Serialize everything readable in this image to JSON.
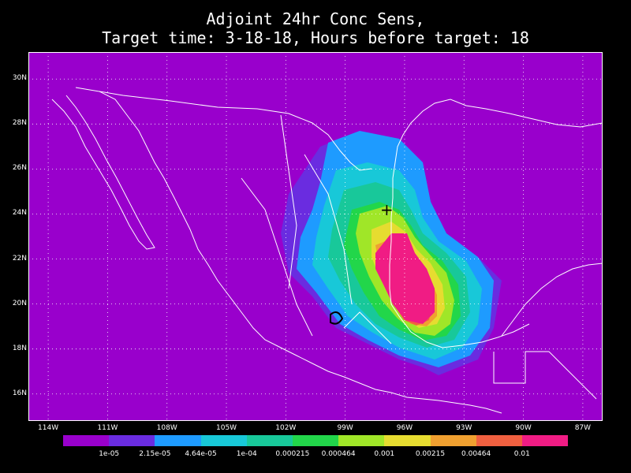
{
  "title_line1": "Adjoint 24hr Conc Sens,",
  "title_line2": "Target time: 3-18-18, Hours before target: 18",
  "map": {
    "lon_range": [
      -115,
      -86
    ],
    "lat_range": [
      14.8,
      31.2
    ],
    "background_color": "#9900cc",
    "target_marker": {
      "lon": -96.9,
      "lat": 24.2,
      "symbol": "+"
    }
  },
  "lat_labels": [
    "30N",
    "28N",
    "26N",
    "24N",
    "22N",
    "20N",
    "18N",
    "16N"
  ],
  "lon_labels": [
    "114W",
    "111W",
    "108W",
    "105W",
    "102W",
    "99W",
    "96W",
    "93W",
    "90W",
    "87W"
  ],
  "colorbar": {
    "colors": [
      "#9900cc",
      "#6a2ce0",
      "#1e9bff",
      "#18c8d8",
      "#18c89a",
      "#22d64a",
      "#a0e628",
      "#e6dc30",
      "#f0a030",
      "#f06040",
      "#f01c84"
    ],
    "labels": [
      "1e-05",
      "2.15e-05",
      "4.64e-05",
      "1e-04",
      "0.000215",
      "0.000464",
      "0.001",
      "0.00215",
      "0.00464",
      "0.01"
    ]
  }
}
